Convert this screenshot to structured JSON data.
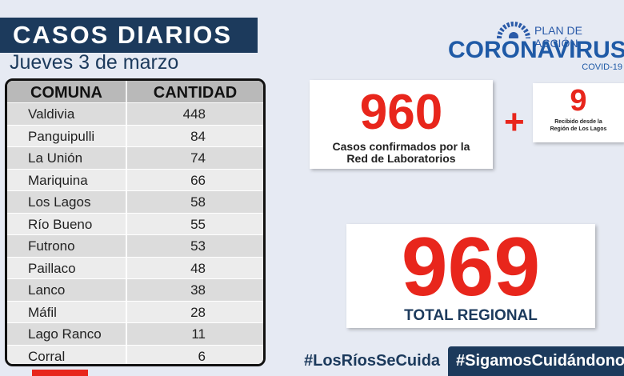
{
  "header": {
    "title": "CASOS DIARIOS",
    "date": "Jueves 3 de marzo"
  },
  "table": {
    "columns": [
      "COMUNA",
      "CANTIDAD"
    ],
    "rows": [
      [
        "Valdivia",
        448
      ],
      [
        "Panguipulli",
        84
      ],
      [
        "La Unión",
        74
      ],
      [
        "Mariquina",
        66
      ],
      [
        "Los Lagos",
        58
      ],
      [
        "Río Bueno",
        55
      ],
      [
        "Futrono",
        53
      ],
      [
        "Paillaco",
        48
      ],
      [
        "Lanco",
        38
      ],
      [
        "Máfil",
        28
      ],
      [
        "Lago Ranco",
        11
      ],
      [
        "Corral",
        6
      ]
    ]
  },
  "logo": {
    "plan": "PLAN DE ACCIÓN",
    "name": "CORONAVIRUS",
    "sub": "COVID-19"
  },
  "lab": {
    "value": 960,
    "lines": [
      "Casos confirmados  por la",
      "Red de Laboratorios"
    ]
  },
  "operator": "+",
  "other": {
    "value": 9,
    "lines": [
      "Recibido desde la",
      "Región de Los Lagos"
    ]
  },
  "total": {
    "value": 969,
    "label": "TOTAL REGIONAL"
  },
  "hashtags": [
    "#LosRíosSeCuida",
    "#SigamosCuidándonos"
  ]
}
